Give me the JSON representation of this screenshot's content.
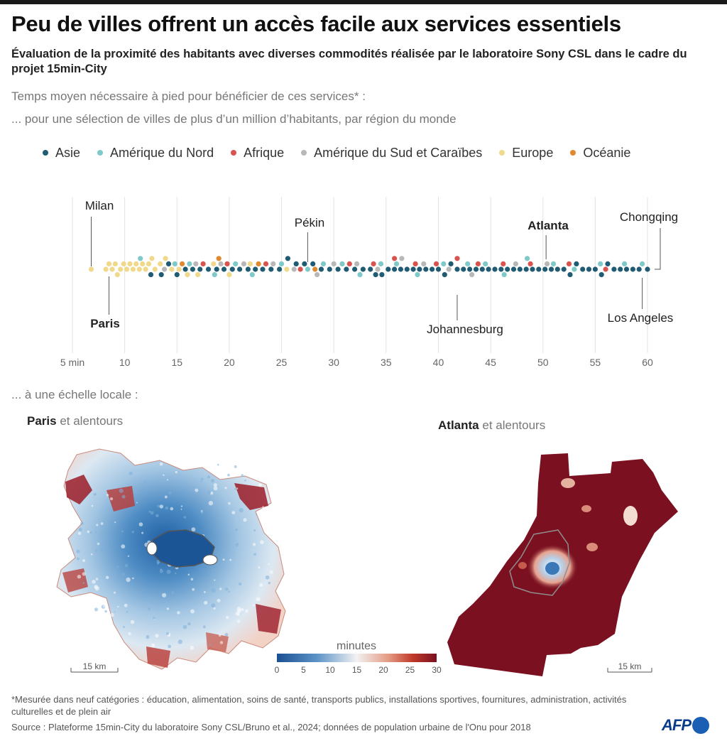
{
  "header": {
    "title": "Peu de villes offrent un accès facile aux services essentiels",
    "subtitle": "Évaluation de la proximité des habitants avec diverses commodités réalisée par le laboratoire Sony CSL dans le cadre du projet 15min-City",
    "intro1": "Temps moyen nécessaire à pied pour bénéficier de ces services* :",
    "intro2": "... pour une sélection de villes de plus d’un million d’habitants, par région du monde"
  },
  "legend": [
    {
      "label": "Asie",
      "color": "#1f5c73"
    },
    {
      "label": "Amérique du Nord",
      "color": "#7fc9c9"
    },
    {
      "label": "Afrique",
      "color": "#d9534f"
    },
    {
      "label": "Amérique du Sud et Caraïbes",
      "color": "#b8b8b8"
    },
    {
      "label": "Europe",
      "color": "#f0d98a"
    },
    {
      "label": "Océanie",
      "color": "#e0892e"
    }
  ],
  "chart_data": [
    {
      "type": "scatter",
      "subtype": "beeswarm",
      "title": "Temps moyen nécessaire à pied pour bénéficier de ces services",
      "xlabel": "minutes",
      "xlim": [
        5,
        60
      ],
      "xticks": [
        5,
        10,
        15,
        20,
        25,
        30,
        35,
        40,
        45,
        50,
        55,
        60
      ],
      "xtick_labels": [
        "5 min",
        "10",
        "15",
        "20",
        "25",
        "30",
        "35",
        "40",
        "45",
        "50",
        "55",
        "60"
      ],
      "grid": true,
      "regions": [
        "Asie",
        "Amérique du Nord",
        "Afrique",
        "Amérique du Sud et Caraïbes",
        "Europe",
        "Océanie"
      ],
      "series": [
        {
          "name": "Europe",
          "values": [
            6.8,
            8.2,
            8.5,
            8.8,
            9.1,
            9.3,
            9.6,
            9.9,
            10.2,
            10.5,
            10.8,
            11.1,
            11.4,
            11.7,
            12.0,
            12.3,
            12.6,
            12.9,
            13.4,
            13.9,
            14.5,
            15.2,
            16.0,
            17.0,
            18.5,
            20.0,
            22.0,
            25.5
          ]
        },
        {
          "name": "Asie",
          "values": [
            12.5,
            13.5,
            14.2,
            15.0,
            15.8,
            16.5,
            17.2,
            18.0,
            18.8,
            19.5,
            20.3,
            21.0,
            21.8,
            22.5,
            23.2,
            24.0,
            24.8,
            25.6,
            26.4,
            27.2,
            28.0,
            28.8,
            29.6,
            30.4,
            31.2,
            32.0,
            32.8,
            33.5,
            34.0,
            34.6,
            35.2,
            35.8,
            36.4,
            37.0,
            37.6,
            38.2,
            38.8,
            39.4,
            40.0,
            40.6,
            41.2,
            41.8,
            42.4,
            43.0,
            43.6,
            44.2,
            44.8,
            45.4,
            46.0,
            46.6,
            47.2,
            47.8,
            48.4,
            49.0,
            49.6,
            50.2,
            50.8,
            51.4,
            52.0,
            52.6,
            53.2,
            53.8,
            54.4,
            55.0,
            55.6,
            56.2,
            56.8,
            57.4,
            58.0,
            58.6,
            59.2,
            60.0
          ]
        },
        {
          "name": "Amérique du Nord",
          "values": [
            11.5,
            14.8,
            16.2,
            18.6,
            20.6,
            22.2,
            25.0,
            27.5,
            29.0,
            30.8,
            32.5,
            34.5,
            36.0,
            38.0,
            40.5,
            42.8,
            44.5,
            46.3,
            48.5,
            51.0,
            53.0,
            55.5,
            57.8,
            59.5
          ]
        },
        {
          "name": "Afrique",
          "values": [
            17.5,
            19.8,
            23.5,
            26.8,
            31.5,
            33.8,
            35.8,
            37.8,
            39.8,
            41.8,
            43.8,
            46.2,
            48.8,
            52.5,
            56.0
          ]
        },
        {
          "name": "Amérique du Sud et Caraïbes",
          "values": [
            13.8,
            16.8,
            19.2,
            21.4,
            24.2,
            26.2,
            28.4,
            30.0,
            32.2,
            34.2,
            36.5,
            38.6,
            41.0,
            43.2,
            47.4,
            50.4
          ]
        },
        {
          "name": "Océanie",
          "values": [
            15.5,
            19.0,
            22.8,
            28.2
          ]
        }
      ],
      "annotations": [
        {
          "label": "Milan",
          "x": 6.8,
          "bold": false
        },
        {
          "label": "Paris",
          "x": 8.5,
          "bold": true
        },
        {
          "label": "Pékin",
          "x": 27.5,
          "bold": false
        },
        {
          "label": "Johannesburg",
          "x": 41.8,
          "bold": false
        },
        {
          "label": "Atlanta",
          "x": 50.3,
          "bold": true
        },
        {
          "label": "Chongqing",
          "x": 60.0,
          "bold": false
        },
        {
          "label": "Los Angeles",
          "x": 59.5,
          "bold": false
        }
      ]
    },
    {
      "type": "heatmap",
      "title": "à une échelle locale",
      "colorbar_label": "minutes",
      "colorbar_range": [
        0,
        30
      ],
      "colorbar_ticks": [
        "0",
        "5",
        "10",
        "15",
        "20",
        "25",
        "30"
      ],
      "maps": [
        {
          "name": "Paris",
          "suffix": "et alentours",
          "scale": "15 km"
        },
        {
          "name": "Atlanta",
          "suffix": "et alentours",
          "scale": "15 km"
        }
      ]
    }
  ],
  "local": {
    "label": "... à une échelle locale :"
  },
  "footer": {
    "footnote": "*Mesurée dans neuf catégories : éducation, alimentation, soins de santé, transports publics, installations sportives, fournitures, administration, activités culturelles et de plein air",
    "source": "Source : Plateforme 15min-City du laboratoire Sony CSL/Bruno et al., 2024; données de population urbaine de l'Onu pour 2018",
    "logo": "AFP"
  }
}
